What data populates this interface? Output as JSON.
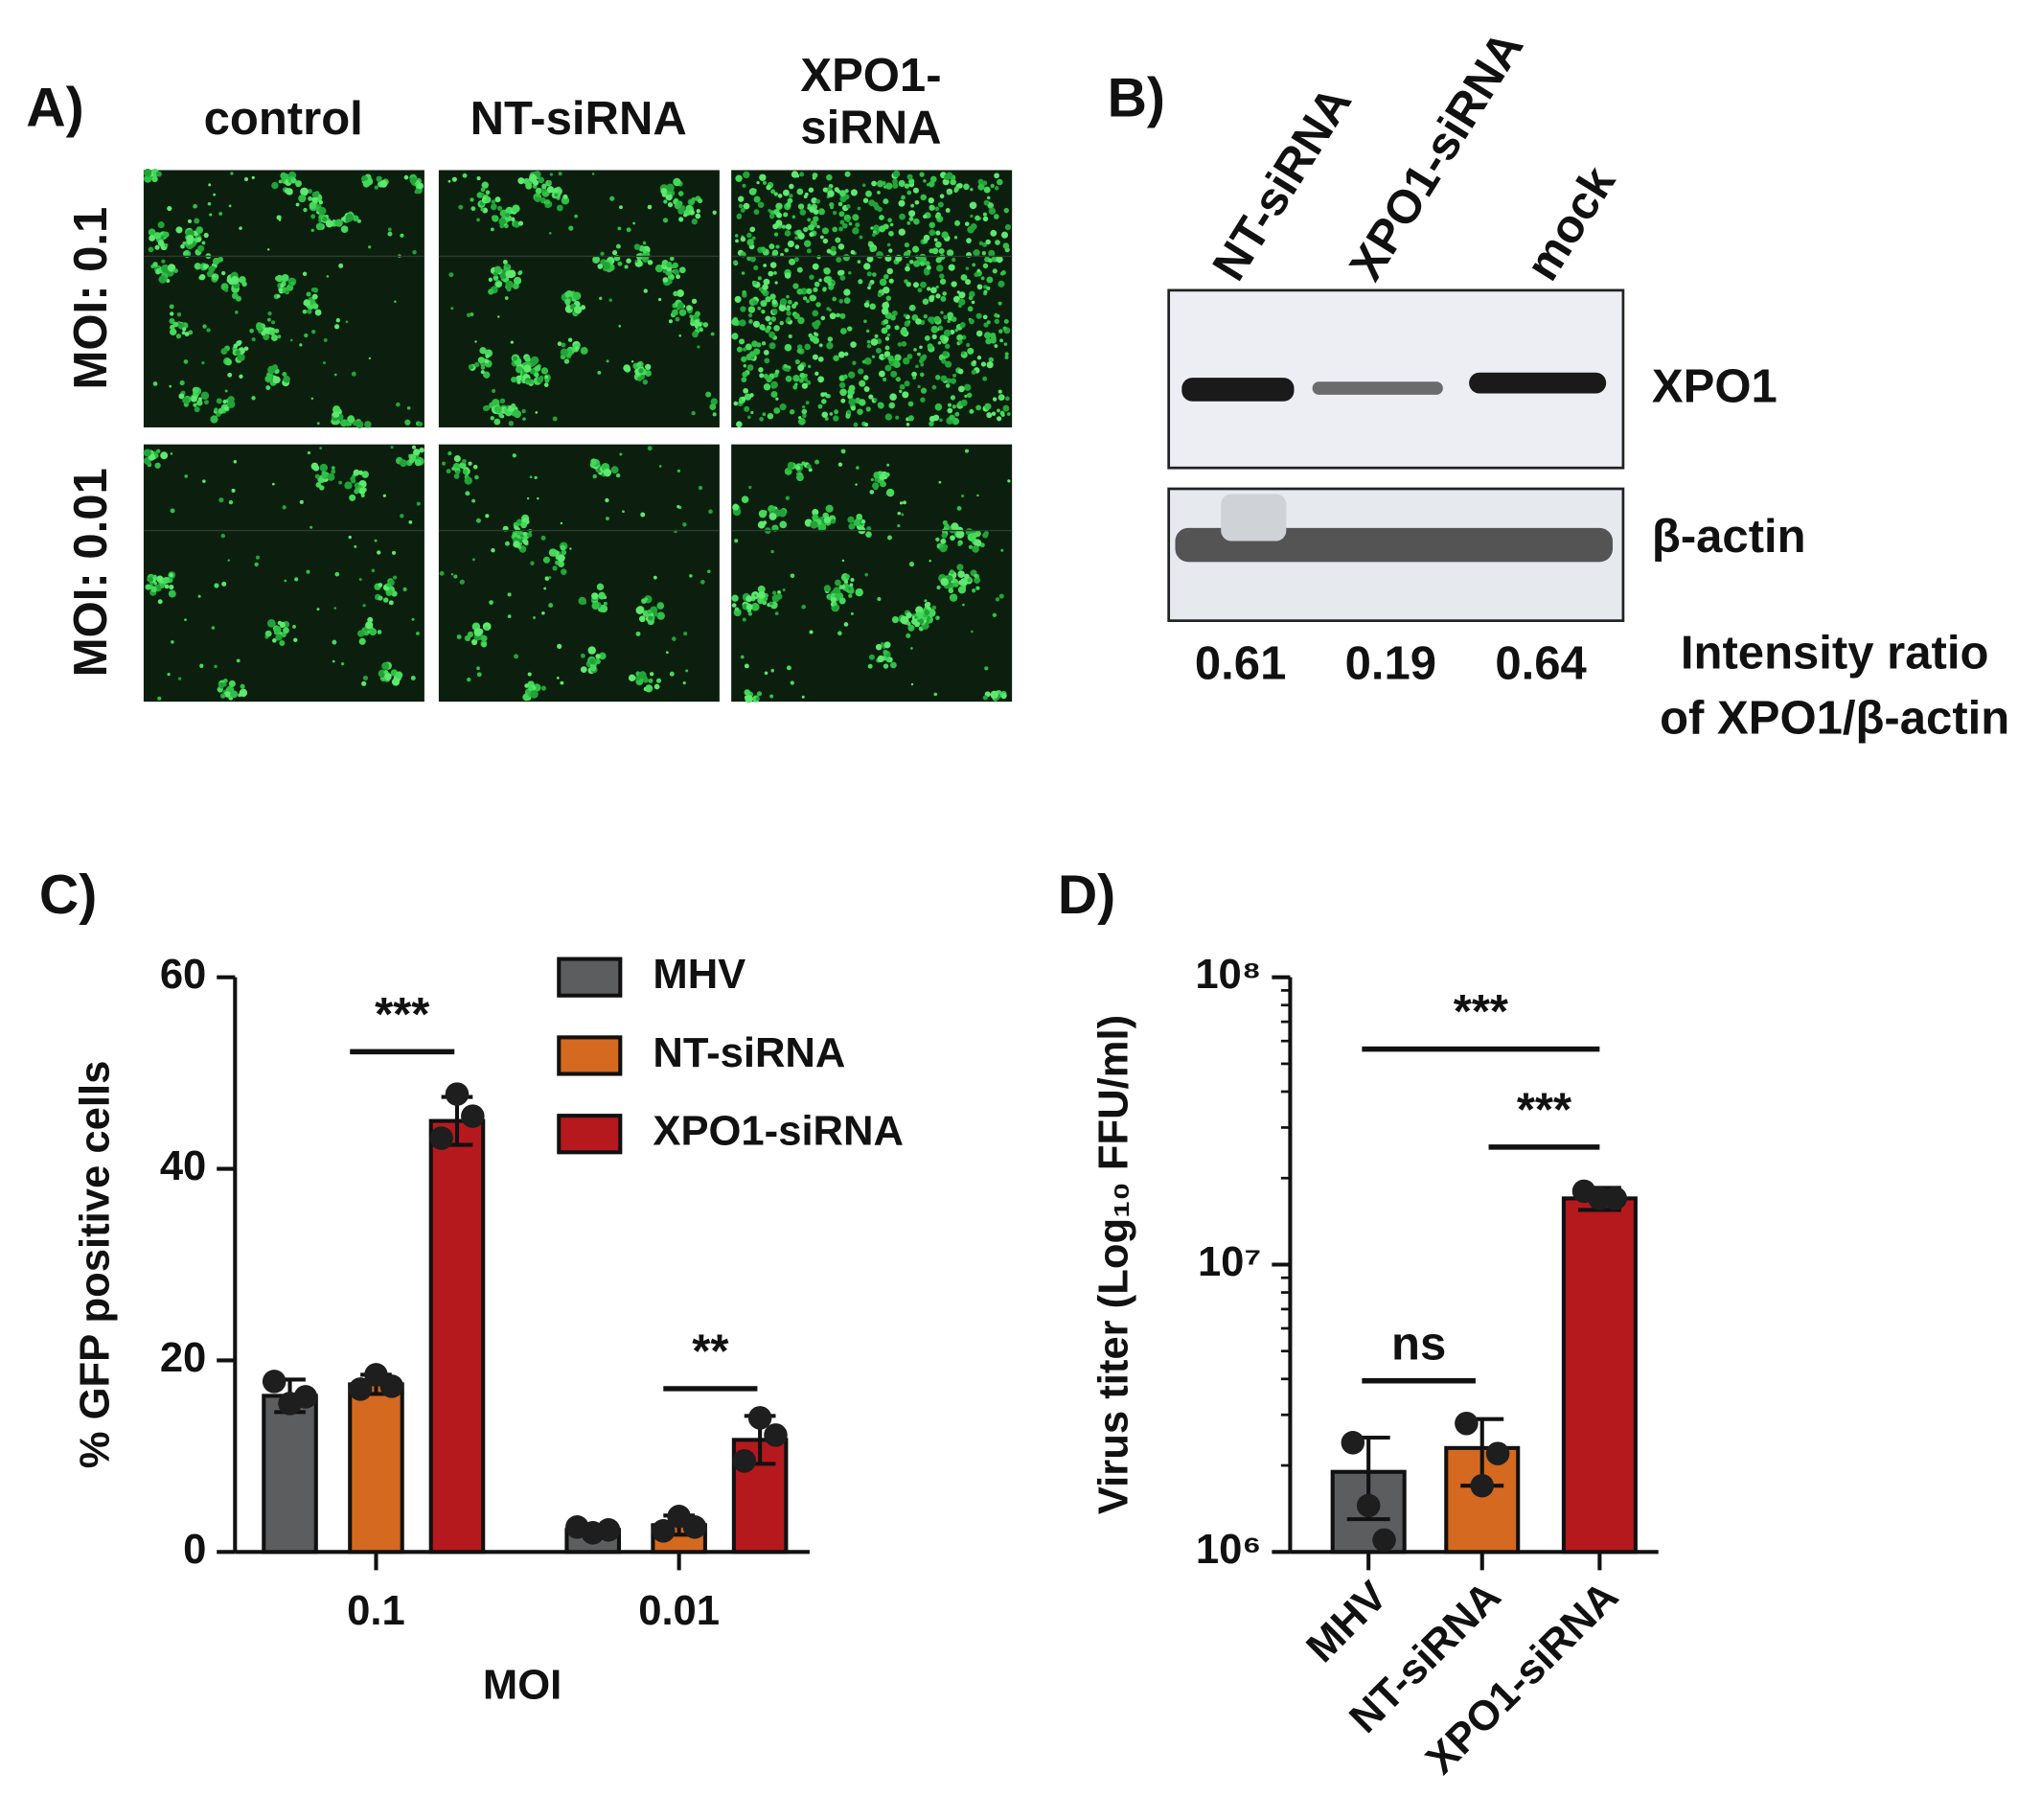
{
  "panel_a": {
    "label": "A)",
    "columns": [
      [
        "control"
      ],
      [
        "NT-siRNA"
      ],
      [
        "XPO1-",
        "siRNA"
      ]
    ],
    "rows": [
      "MOI: 0.1",
      "MOI: 0.01"
    ]
  },
  "panel_b": {
    "label": "B)",
    "lanes": [
      "NT-siRNA",
      "XPO1-siRNA",
      "mock"
    ],
    "bands": [
      "XPO1",
      "β-actin"
    ],
    "ratios": [
      0.61,
      0.19,
      0.64
    ],
    "ratio_label": [
      "Intensity ratio",
      "of XPO1/β-actin"
    ]
  },
  "chart_data": [
    {
      "type": "bar",
      "panel_label": "C)",
      "y_label": "% GFP positive cells",
      "x_label": "MOI",
      "categories": [
        "0.1",
        "0.01"
      ],
      "series": [
        {
          "name": "MHV",
          "color": "#5c5d5f",
          "values": [
            16.3,
            2.3
          ],
          "errors": [
            1.7,
            0.5
          ],
          "points": [
            [
              17.8,
              15.5,
              16.2
            ],
            [
              2.6,
              2.0,
              2.3
            ]
          ]
        },
        {
          "name": "NT-siRNA",
          "color": "#d4691f",
          "values": [
            17.5,
            2.8
          ],
          "errors": [
            1.0,
            1.0
          ],
          "points": [
            [
              17.0,
              18.5,
              17.3
            ],
            [
              2.2,
              3.7,
              2.6
            ]
          ]
        },
        {
          "name": "XPO1-siRNA",
          "color": "#b5191d",
          "values": [
            45,
            11.7
          ],
          "errors": [
            2.5,
            2.5
          ],
          "points": [
            [
              43.2,
              47.8,
              45.5
            ],
            [
              9.5,
              14.0,
              12.2
            ]
          ]
        }
      ],
      "ylim": [
        0,
        60
      ],
      "yticks": [
        0,
        20,
        40,
        60
      ],
      "log_scale": false,
      "grid": false,
      "legend": "top-right",
      "annotations": [
        "***",
        "**"
      ]
    },
    {
      "type": "bar",
      "panel_label": "D)",
      "y_label": "Virus titer (Log₁₀ FFU/ml)",
      "categories": [
        "MHV",
        "NT-siRNA",
        "XPO1-siRNA"
      ],
      "colors": [
        "#5c5d5f",
        "#d4691f",
        "#b5191d"
      ],
      "values": [
        1900000,
        2300000,
        17000000
      ],
      "errors": [
        600000,
        600000,
        1500000
      ],
      "points": [
        [
          2400000,
          1450000,
          1100000
        ],
        [
          2800000,
          1700000,
          2200000
        ],
        [
          18000000,
          17000000,
          17000000
        ]
      ],
      "ylim": [
        1000000,
        100000000
      ],
      "yticks": [
        {
          "value": 1000000,
          "label": "10⁶"
        },
        {
          "value": 10000000,
          "label": "10⁷"
        },
        {
          "value": 100000000,
          "label": "10⁸"
        }
      ],
      "log_scale": true,
      "grid": false,
      "annotations": [
        "***",
        "***",
        "ns"
      ]
    }
  ]
}
